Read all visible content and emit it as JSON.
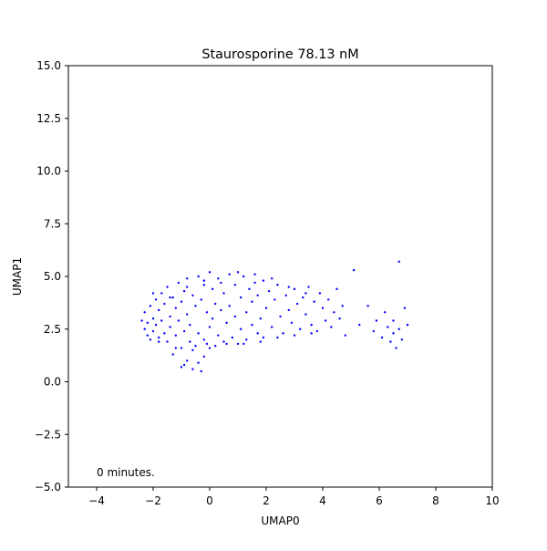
{
  "chart_data": {
    "type": "scatter",
    "title": "Staurosporine 78.13 nM",
    "xlabel": "UMAP0",
    "ylabel": "UMAP1",
    "xlim": [
      -5,
      10
    ],
    "ylim": [
      -5,
      15
    ],
    "xticks": [
      -4,
      -2,
      0,
      2,
      4,
      6,
      8,
      10
    ],
    "xtick_labels": [
      "−4",
      "−2",
      "0",
      "2",
      "4",
      "6",
      "8",
      "10"
    ],
    "yticks": [
      -5.0,
      -2.5,
      0.0,
      2.5,
      5.0,
      7.5,
      10.0,
      12.5,
      15.0
    ],
    "ytick_labels": [
      "−5.0",
      "−2.5",
      "0.0",
      "2.5",
      "5.0",
      "7.5",
      "10.0",
      "12.5",
      "15.0"
    ],
    "annotation": "0 minutes.",
    "grid": false,
    "marker_color": "#0000ff",
    "series": [
      {
        "points": [
          [
            -2.4,
            2.9
          ],
          [
            -2.3,
            2.5
          ],
          [
            -2.3,
            3.3
          ],
          [
            -2.2,
            2.2
          ],
          [
            -2.2,
            2.8
          ],
          [
            -2.1,
            3.6
          ],
          [
            -2.1,
            2.0
          ],
          [
            -2.0,
            3.0
          ],
          [
            -2.0,
            2.4
          ],
          [
            -1.9,
            3.9
          ],
          [
            -1.9,
            2.7
          ],
          [
            -1.8,
            2.1
          ],
          [
            -1.8,
            3.4
          ],
          [
            -1.7,
            4.2
          ],
          [
            -1.7,
            2.9
          ],
          [
            -1.6,
            2.3
          ],
          [
            -1.6,
            3.7
          ],
          [
            -1.5,
            4.5
          ],
          [
            -1.5,
            1.9
          ],
          [
            -1.4,
            3.1
          ],
          [
            -1.4,
            2.6
          ],
          [
            -1.3,
            4.0
          ],
          [
            -1.3,
            1.3
          ],
          [
            -1.2,
            3.5
          ],
          [
            -1.2,
            2.2
          ],
          [
            -1.1,
            4.7
          ],
          [
            -1.1,
            2.9
          ],
          [
            -1.0,
            1.6
          ],
          [
            -1.0,
            3.8
          ],
          [
            -0.9,
            4.3
          ],
          [
            -0.9,
            2.4
          ],
          [
            -0.9,
            0.8
          ],
          [
            -0.8,
            3.2
          ],
          [
            -0.8,
            4.9
          ],
          [
            -0.7,
            1.9
          ],
          [
            -0.7,
            2.7
          ],
          [
            -0.6,
            0.6
          ],
          [
            -0.6,
            4.1
          ],
          [
            -0.5,
            3.6
          ],
          [
            -0.5,
            1.7
          ],
          [
            -0.4,
            5.0
          ],
          [
            -0.4,
            2.3
          ],
          [
            -0.3,
            0.5
          ],
          [
            -0.3,
            3.9
          ],
          [
            -0.2,
            4.6
          ],
          [
            -0.2,
            2.0
          ],
          [
            -0.1,
            3.3
          ],
          [
            -0.1,
            1.8
          ],
          [
            0.0,
            5.2
          ],
          [
            0.0,
            2.6
          ],
          [
            0.1,
            4.4
          ],
          [
            0.1,
            3.0
          ],
          [
            0.2,
            1.7
          ],
          [
            0.2,
            3.7
          ],
          [
            0.3,
            4.9
          ],
          [
            0.3,
            2.2
          ],
          [
            0.4,
            3.4
          ],
          [
            0.5,
            4.2
          ],
          [
            0.5,
            1.9
          ],
          [
            0.6,
            2.8
          ],
          [
            0.7,
            5.1
          ],
          [
            0.7,
            3.6
          ],
          [
            0.8,
            2.1
          ],
          [
            0.9,
            4.6
          ],
          [
            0.9,
            3.1
          ],
          [
            1.0,
            1.8
          ],
          [
            1.1,
            4.0
          ],
          [
            1.1,
            2.5
          ],
          [
            1.2,
            5.0
          ],
          [
            1.3,
            3.3
          ],
          [
            1.3,
            2.0
          ],
          [
            1.4,
            4.4
          ],
          [
            1.5,
            2.7
          ],
          [
            1.5,
            3.8
          ],
          [
            1.6,
            5.1
          ],
          [
            1.7,
            2.3
          ],
          [
            1.7,
            4.1
          ],
          [
            1.8,
            3.0
          ],
          [
            1.9,
            4.8
          ],
          [
            1.9,
            2.1
          ],
          [
            2.0,
            3.5
          ],
          [
            2.1,
            4.3
          ],
          [
            2.2,
            2.6
          ],
          [
            2.3,
            3.9
          ],
          [
            2.4,
            4.6
          ],
          [
            2.5,
            3.1
          ],
          [
            2.6,
            2.3
          ],
          [
            2.7,
            4.1
          ],
          [
            2.8,
            3.4
          ],
          [
            2.9,
            2.8
          ],
          [
            3.0,
            4.4
          ],
          [
            3.1,
            3.7
          ],
          [
            3.2,
            2.5
          ],
          [
            3.3,
            4.0
          ],
          [
            3.4,
            3.2
          ],
          [
            3.5,
            4.5
          ],
          [
            3.6,
            2.7
          ],
          [
            3.7,
            3.8
          ],
          [
            3.8,
            2.4
          ],
          [
            3.9,
            4.2
          ],
          [
            4.0,
            3.5
          ],
          [
            4.1,
            2.9
          ],
          [
            4.2,
            3.9
          ],
          [
            4.3,
            2.6
          ],
          [
            4.4,
            3.3
          ],
          [
            4.5,
            4.4
          ],
          [
            4.6,
            3.0
          ],
          [
            4.7,
            3.6
          ],
          [
            4.8,
            2.2
          ],
          [
            5.1,
            5.3
          ],
          [
            5.3,
            2.7
          ],
          [
            5.6,
            3.6
          ],
          [
            5.8,
            2.4
          ],
          [
            5.9,
            2.9
          ],
          [
            6.1,
            2.1
          ],
          [
            6.2,
            3.3
          ],
          [
            6.3,
            2.6
          ],
          [
            6.4,
            1.9
          ],
          [
            6.5,
            2.9
          ],
          [
            6.5,
            2.3
          ],
          [
            6.6,
            1.6
          ],
          [
            6.7,
            5.7
          ],
          [
            6.7,
            2.5
          ],
          [
            6.8,
            2.0
          ],
          [
            6.9,
            3.5
          ],
          [
            7.0,
            2.7
          ],
          [
            -2.0,
            4.2
          ],
          [
            -1.4,
            4.0
          ],
          [
            -0.8,
            4.5
          ],
          [
            -0.2,
            4.8
          ],
          [
            0.4,
            4.7
          ],
          [
            1.0,
            5.2
          ],
          [
            1.6,
            4.7
          ],
          [
            2.2,
            4.9
          ],
          [
            2.8,
            4.5
          ],
          [
            3.4,
            4.2
          ],
          [
            -1.8,
            1.9
          ],
          [
            -1.2,
            1.6
          ],
          [
            -0.6,
            1.5
          ],
          [
            0.0,
            1.6
          ],
          [
            0.6,
            1.8
          ],
          [
            1.2,
            1.8
          ],
          [
            1.8,
            1.9
          ],
          [
            2.4,
            2.1
          ],
          [
            3.0,
            2.2
          ],
          [
            3.6,
            2.3
          ],
          [
            -0.4,
            0.9
          ],
          [
            -0.8,
            1.0
          ],
          [
            -0.2,
            1.2
          ],
          [
            -1.0,
            0.7
          ]
        ]
      }
    ]
  }
}
